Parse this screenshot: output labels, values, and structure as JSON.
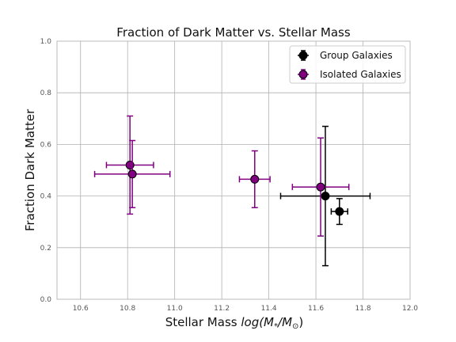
{
  "chart_data": {
    "type": "scatter",
    "title": "Fraction of Dark Matter vs. Stellar Mass",
    "xlabel_prefix": "Stellar Mass ",
    "xlabel_math": "log(M",
    "xlabel_sub1": "*",
    "xlabel_mid": "/M",
    "xlabel_sub2": "⊙",
    "xlabel_end": ")",
    "ylabel": "Fraction Dark Matter",
    "xlim": [
      10.5,
      12.0
    ],
    "ylim": [
      0.0,
      1.0
    ],
    "xticks": [
      "10.6",
      "10.8",
      "11.0",
      "11.2",
      "11.4",
      "11.6",
      "11.8",
      "12.0"
    ],
    "xtick_values": [
      10.6,
      10.8,
      11.0,
      11.2,
      11.4,
      11.6,
      11.8,
      12.0
    ],
    "yticks": [
      "0.0",
      "0.2",
      "0.4",
      "0.6",
      "0.8",
      "1.0"
    ],
    "ytick_values": [
      0.0,
      0.2,
      0.4,
      0.6,
      0.8,
      1.0
    ],
    "grid": true,
    "legend_position": "top-right",
    "series": [
      {
        "name": "Group Galaxies",
        "color": "#000000",
        "points": [
          {
            "x": 11.7,
            "y": 0.34,
            "xerr": 0.035,
            "yerr": 0.05
          },
          {
            "x": 11.64,
            "y": 0.4,
            "xerr": 0.19,
            "yerr": 0.27
          }
        ]
      },
      {
        "name": "Isolated Galaxies",
        "color": "#800080",
        "points": [
          {
            "x": 10.81,
            "y": 0.52,
            "xerr": 0.1,
            "yerr": 0.19
          },
          {
            "x": 10.82,
            "y": 0.485,
            "xerr": 0.16,
            "yerr": 0.13
          },
          {
            "x": 11.34,
            "y": 0.465,
            "xerr": 0.065,
            "yerr": 0.11
          },
          {
            "x": 11.62,
            "y": 0.435,
            "xerr": 0.12,
            "yerr": 0.19
          }
        ]
      }
    ]
  }
}
